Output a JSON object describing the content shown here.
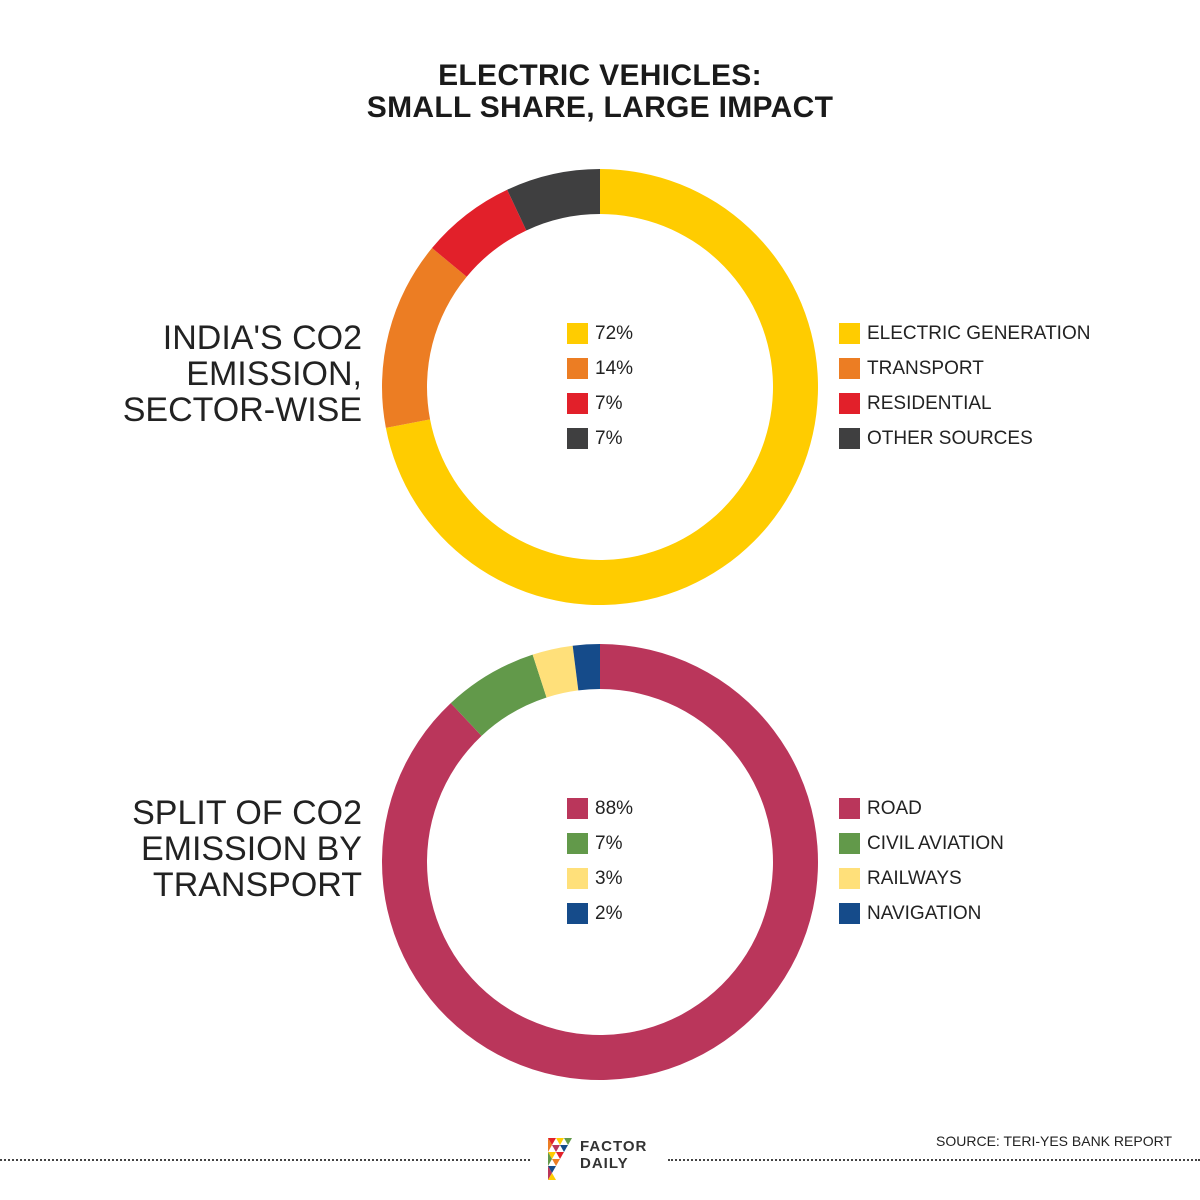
{
  "title": {
    "line1": "ELECTRIC VEHICLES:",
    "line2": "SMALL SHARE, LARGE IMPACT"
  },
  "chart_data": [
    {
      "type": "pie",
      "title_lines": [
        "INDIA'S CO2",
        "EMISSION,",
        "SECTOR-WISE"
      ],
      "categories": [
        "ELECTRIC GENERATION",
        "TRANSPORT",
        "RESIDENTIAL",
        "OTHER SOURCES"
      ],
      "values": [
        72,
        14,
        7,
        7
      ],
      "value_labels": [
        "72%",
        "14%",
        "7%",
        "7%"
      ],
      "colors": [
        "#FFCC00",
        "#EC7D23",
        "#E2202A",
        "#3F3F40"
      ]
    },
    {
      "type": "pie",
      "title_lines": [
        "SPLIT OF CO2",
        "EMISSION BY",
        "TRANSPORT"
      ],
      "categories": [
        "ROAD",
        "CIVIL AVIATION",
        "RAILWAYS",
        "NAVIGATION"
      ],
      "values": [
        88,
        7,
        3,
        2
      ],
      "value_labels": [
        "88%",
        "7%",
        "3%",
        "2%"
      ],
      "colors": [
        "#BA365B",
        "#62994A",
        "#FFE07A",
        "#154B8A"
      ]
    }
  ],
  "footer": {
    "logo_line1": "FACTOR",
    "logo_line2": "DAILY",
    "source": "SOURCE: TERI-YES BANK REPORT"
  }
}
